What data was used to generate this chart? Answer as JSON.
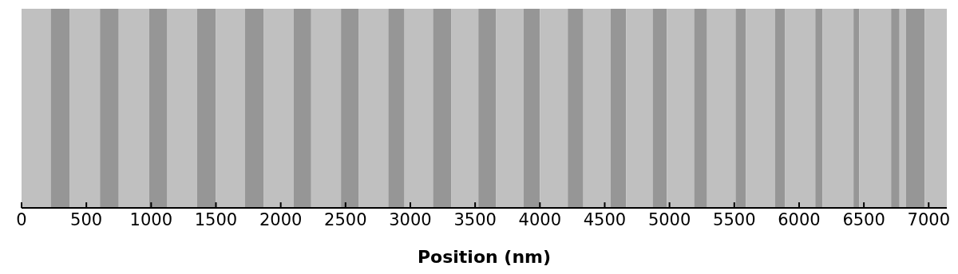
{
  "chart_data": {
    "type": "bar",
    "orientation": "horizontal",
    "stacked": true,
    "categories": [
      null
    ],
    "xlabel": "Position (nm)",
    "xlim": [
      0,
      7140
    ],
    "xticks": [
      0,
      500,
      1000,
      1500,
      2000,
      2500,
      3000,
      3500,
      4000,
      4500,
      5000,
      5500,
      6000,
      6500,
      7000
    ],
    "series": [
      {
        "color": "#c0c0c0",
        "values": [
          225
        ]
      },
      {
        "color": "#969696",
        "values": [
          145
        ]
      },
      {
        "color": "#c0c0c0",
        "values": [
          235
        ]
      },
      {
        "color": "#969696",
        "values": [
          145
        ]
      },
      {
        "color": "#c0c0c0",
        "values": [
          235
        ]
      },
      {
        "color": "#969696",
        "values": [
          140
        ]
      },
      {
        "color": "#c0c0c0",
        "values": [
          230
        ]
      },
      {
        "color": "#969696",
        "values": [
          145
        ]
      },
      {
        "color": "#c0c0c0",
        "values": [
          225
        ]
      },
      {
        "color": "#969696",
        "values": [
          145
        ]
      },
      {
        "color": "#c0c0c0",
        "values": [
          230
        ]
      },
      {
        "color": "#969696",
        "values": [
          135
        ]
      },
      {
        "color": "#c0c0c0",
        "values": [
          230
        ]
      },
      {
        "color": "#969696",
        "values": [
          135
        ]
      },
      {
        "color": "#c0c0c0",
        "values": [
          230
        ]
      },
      {
        "color": "#969696",
        "values": [
          125
        ]
      },
      {
        "color": "#c0c0c0",
        "values": [
          220
        ]
      },
      {
        "color": "#969696",
        "values": [
          140
        ]
      },
      {
        "color": "#c0c0c0",
        "values": [
          210
        ]
      },
      {
        "color": "#969696",
        "values": [
          135
        ]
      },
      {
        "color": "#c0c0c0",
        "values": [
          215
        ]
      },
      {
        "color": "#969696",
        "values": [
          125
        ]
      },
      {
        "color": "#c0c0c0",
        "values": [
          215
        ]
      },
      {
        "color": "#969696",
        "values": [
          120
        ]
      },
      {
        "color": "#c0c0c0",
        "values": [
          210
        ]
      },
      {
        "color": "#969696",
        "values": [
          120
        ]
      },
      {
        "color": "#c0c0c0",
        "values": [
          205
        ]
      },
      {
        "color": "#969696",
        "values": [
          110
        ]
      },
      {
        "color": "#c0c0c0",
        "values": [
          210
        ]
      },
      {
        "color": "#969696",
        "values": [
          100
        ]
      },
      {
        "color": "#c0c0c0",
        "values": [
          220
        ]
      },
      {
        "color": "#969696",
        "values": [
          80
        ]
      },
      {
        "color": "#c0c0c0",
        "values": [
          225
        ]
      },
      {
        "color": "#969696",
        "values": [
          75
        ]
      },
      {
        "color": "#c0c0c0",
        "values": [
          235
        ]
      },
      {
        "color": "#969696",
        "values": [
          55
        ]
      },
      {
        "color": "#c0c0c0",
        "values": [
          240
        ]
      },
      {
        "color": "#969696",
        "values": [
          45
        ]
      },
      {
        "color": "#c0c0c0",
        "values": [
          245
        ]
      },
      {
        "color": "#969696",
        "values": [
          65
        ]
      },
      {
        "color": "#c0c0c0",
        "values": [
          50
        ]
      },
      {
        "color": "#969696",
        "values": [
          145
        ]
      },
      {
        "color": "#c0c0c0",
        "values": [
          170
        ]
      }
    ]
  }
}
